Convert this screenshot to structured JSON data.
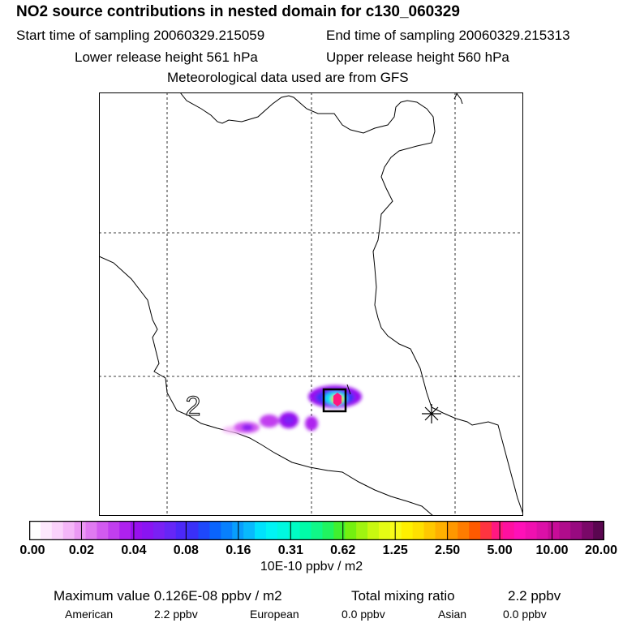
{
  "header": {
    "title": "NO2 source contributions in nested domain for c130_060329",
    "start_time": "Start time of sampling 20060329.215059",
    "end_time": "End time of sampling 20060329.215313",
    "lower_height": "Lower release height  561 hPa",
    "upper_height": "Upper release height  560 hPa",
    "met_data": "Meteorological data used are from GFS"
  },
  "map": {
    "region_label": "2",
    "marker_icon": "asterisk-marker-icon",
    "box_icon": "sampling-box-icon"
  },
  "legend": {
    "ticks": [
      "0.00",
      "0.02",
      "0.04",
      "0.08",
      "0.16",
      "0.31",
      "0.62",
      "1.25",
      "2.50",
      "5.00",
      "10.00",
      "20.00"
    ],
    "units": "10E-10 ppbv / m2",
    "colors": [
      "#ffffff",
      "#fde8fd",
      "#fad2fb",
      "#f4b6f8",
      "#eb98f4",
      "#e07af1",
      "#d25af0",
      "#c13eef",
      "#ae21ef",
      "#9810ef",
      "#8a14f2",
      "#7a20f4",
      "#6626f6",
      "#4c28f8",
      "#3a30f8",
      "#1e48fb",
      "#0a64fd",
      "#0880fd",
      "#089efd",
      "#08bafd",
      "#00e2fd",
      "#00f4f4",
      "#00f8e0",
      "#00fcc4",
      "#00fca8",
      "#10f888",
      "#20f460",
      "#40f030",
      "#74f010",
      "#a0f410",
      "#c8f810",
      "#e4fc14",
      "#f8fc18",
      "#fff000",
      "#ffe000",
      "#ffc800",
      "#ffb000",
      "#ff9800",
      "#ff7c00",
      "#ff5a00",
      "#ff3440",
      "#ff1880",
      "#ff10a0",
      "#ff10b8",
      "#f010b0",
      "#dc10a8",
      "#c80c98",
      "#b00c8c",
      "#980a80",
      "#7a0868",
      "#5a0650"
    ]
  },
  "summary": {
    "max_value": "Maximum value  0.126E-08 ppbv / m2",
    "total_label": "Total mixing ratio",
    "total_value": "2.2 ppbv",
    "american_label": "American",
    "american_value": "2.2 ppbv",
    "european_label": "European",
    "european_value": "0.0 ppbv",
    "asian_label": "Asian",
    "asian_value": "0.0 ppbv"
  }
}
